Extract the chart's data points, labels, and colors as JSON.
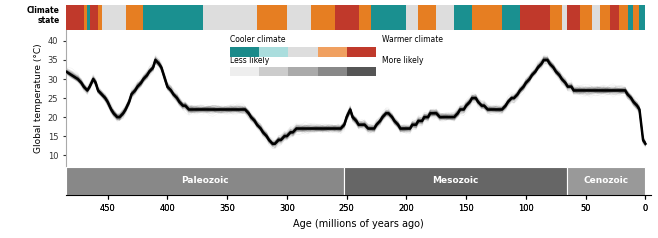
{
  "title": "Climate state",
  "ylabel": "Global temperature (°C)",
  "xlabel": "Age (millions of years ago)",
  "xlim": [
    485,
    -5
  ],
  "ylim": [
    7,
    43
  ],
  "yticks": [
    10,
    15,
    20,
    25,
    30,
    35,
    40
  ],
  "xticks": [
    450,
    400,
    350,
    300,
    250,
    200,
    150,
    100,
    50,
    0
  ],
  "eras": [
    {
      "name": "Paleozoic",
      "xmin": 485,
      "xmax": 252,
      "color": "#888888"
    },
    {
      "name": "Mesozoic",
      "xmin": 252,
      "xmax": 66,
      "color": "#666666"
    },
    {
      "name": "Cenozoic",
      "xmin": 66,
      "xmax": 0,
      "color": "#999999"
    }
  ],
  "legend_items": [
    {
      "label": "Cooler climate",
      "color": "#1a8a8a"
    },
    {
      "label": "Warmer climate",
      "color": "#c0392b"
    }
  ],
  "climate_bar_segments": [
    {
      "xstart": 485,
      "xend": 470,
      "color": "#c0392b"
    },
    {
      "xstart": 470,
      "xend": 467,
      "color": "#e67e22"
    },
    {
      "xstart": 467,
      "xend": 465,
      "color": "#1a9090"
    },
    {
      "xstart": 465,
      "xend": 462,
      "color": "#c0392b"
    },
    {
      "xstart": 462,
      "xend": 458,
      "color": "#c0392b"
    },
    {
      "xstart": 458,
      "xend": 455,
      "color": "#e67e22"
    },
    {
      "xstart": 455,
      "xend": 448,
      "color": "#dddddd"
    },
    {
      "xstart": 448,
      "xend": 440,
      "color": "#dddddd"
    },
    {
      "xstart": 440,
      "xend": 435,
      "color": "#dddddd"
    },
    {
      "xstart": 435,
      "xend": 430,
      "color": "#e67e22"
    },
    {
      "xstart": 430,
      "xend": 420,
      "color": "#e67e22"
    },
    {
      "xstart": 420,
      "xend": 415,
      "color": "#1a9090"
    },
    {
      "xstart": 415,
      "xend": 400,
      "color": "#1a9090"
    },
    {
      "xstart": 400,
      "xend": 390,
      "color": "#1a9090"
    },
    {
      "xstart": 390,
      "xend": 380,
      "color": "#1a9090"
    },
    {
      "xstart": 380,
      "xend": 370,
      "color": "#1a9090"
    },
    {
      "xstart": 370,
      "xend": 355,
      "color": "#dddddd"
    },
    {
      "xstart": 355,
      "xend": 340,
      "color": "#dddddd"
    },
    {
      "xstart": 340,
      "xend": 325,
      "color": "#dddddd"
    },
    {
      "xstart": 325,
      "xend": 310,
      "color": "#e67e22"
    },
    {
      "xstart": 310,
      "xend": 300,
      "color": "#e67e22"
    },
    {
      "xstart": 300,
      "xend": 280,
      "color": "#dddddd"
    },
    {
      "xstart": 280,
      "xend": 260,
      "color": "#e67e22"
    },
    {
      "xstart": 260,
      "xend": 252,
      "color": "#c0392b"
    },
    {
      "xstart": 252,
      "xend": 240,
      "color": "#c0392b"
    },
    {
      "xstart": 240,
      "xend": 230,
      "color": "#e67e22"
    },
    {
      "xstart": 230,
      "xend": 215,
      "color": "#1a9090"
    },
    {
      "xstart": 215,
      "xend": 200,
      "color": "#1a9090"
    },
    {
      "xstart": 200,
      "xend": 190,
      "color": "#dddddd"
    },
    {
      "xstart": 190,
      "xend": 175,
      "color": "#e67e22"
    },
    {
      "xstart": 175,
      "xend": 160,
      "color": "#dddddd"
    },
    {
      "xstart": 160,
      "xend": 145,
      "color": "#1a9090"
    },
    {
      "xstart": 145,
      "xend": 130,
      "color": "#e67e22"
    },
    {
      "xstart": 130,
      "xend": 120,
      "color": "#e67e22"
    },
    {
      "xstart": 120,
      "xend": 105,
      "color": "#1a9090"
    },
    {
      "xstart": 105,
      "xend": 90,
      "color": "#c0392b"
    },
    {
      "xstart": 90,
      "xend": 80,
      "color": "#c0392b"
    },
    {
      "xstart": 80,
      "xend": 70,
      "color": "#e67e22"
    },
    {
      "xstart": 70,
      "xend": 66,
      "color": "#dddddd"
    },
    {
      "xstart": 66,
      "xend": 55,
      "color": "#c0392b"
    },
    {
      "xstart": 55,
      "xend": 45,
      "color": "#e67e22"
    },
    {
      "xstart": 45,
      "xend": 38,
      "color": "#dddddd"
    },
    {
      "xstart": 38,
      "xend": 30,
      "color": "#e67e22"
    },
    {
      "xstart": 30,
      "xend": 22,
      "color": "#c0392b"
    },
    {
      "xstart": 22,
      "xend": 15,
      "color": "#e67e22"
    },
    {
      "xstart": 15,
      "xend": 10,
      "color": "#1a9090"
    },
    {
      "xstart": 10,
      "xend": 5,
      "color": "#e67e22"
    },
    {
      "xstart": 5,
      "xend": 0,
      "color": "#1a9090"
    }
  ],
  "main_curve_x": [
    485,
    480,
    475,
    472,
    470,
    467,
    465,
    462,
    460,
    458,
    455,
    452,
    450,
    447,
    445,
    442,
    440,
    437,
    435,
    432,
    430,
    427,
    425,
    422,
    420,
    417,
    415,
    412,
    410,
    407,
    405,
    402,
    400,
    397,
    395,
    392,
    390,
    387,
    385,
    382,
    380,
    377,
    375,
    372,
    370,
    367,
    365,
    362,
    360,
    357,
    355,
    352,
    350,
    347,
    345,
    342,
    340,
    337,
    335,
    332,
    330,
    327,
    325,
    322,
    320,
    317,
    315,
    312,
    310,
    307,
    305,
    302,
    300,
    297,
    295,
    292,
    290,
    287,
    285,
    282,
    280,
    277,
    275,
    272,
    270,
    267,
    265,
    262,
    260,
    257,
    255,
    252,
    250,
    247,
    245,
    242,
    240,
    237,
    235,
    232,
    230,
    227,
    225,
    222,
    220,
    217,
    215,
    212,
    210,
    207,
    205,
    202,
    200,
    197,
    195,
    192,
    190,
    187,
    185,
    182,
    180,
    177,
    175,
    172,
    170,
    167,
    165,
    162,
    160,
    157,
    155,
    152,
    150,
    147,
    145,
    142,
    140,
    137,
    135,
    132,
    130,
    127,
    125,
    122,
    120,
    117,
    115,
    112,
    110,
    107,
    105,
    102,
    100,
    97,
    95,
    92,
    90,
    87,
    85,
    82,
    80,
    77,
    75,
    72,
    70,
    67,
    65,
    62,
    60,
    57,
    55,
    52,
    50,
    47,
    45,
    42,
    40,
    37,
    35,
    32,
    30,
    27,
    25,
    22,
    20,
    17,
    15,
    12,
    10,
    7,
    5,
    2,
    0
  ],
  "main_curve_y": [
    32,
    31,
    30,
    29,
    28,
    27,
    28,
    30,
    29,
    27,
    26,
    25,
    24,
    22,
    21,
    20,
    20,
    21,
    22,
    24,
    26,
    27,
    28,
    29,
    30,
    31,
    32,
    33,
    35,
    34,
    33,
    30,
    28,
    27,
    26,
    25,
    24,
    23,
    23,
    22,
    22,
    22,
    22,
    22,
    22,
    22,
    22,
    22,
    22,
    22,
    22,
    22,
    22,
    22,
    22,
    22,
    22,
    22,
    22,
    21,
    20,
    19,
    18,
    17,
    16,
    15,
    14,
    13,
    13,
    14,
    14,
    15,
    15,
    16,
    16,
    17,
    17,
    17,
    17,
    17,
    17,
    17,
    17,
    17,
    17,
    17,
    17,
    17,
    17,
    17,
    17,
    18,
    20,
    22,
    20,
    19,
    18,
    18,
    18,
    17,
    17,
    17,
    18,
    19,
    20,
    21,
    21,
    20,
    19,
    18,
    17,
    17,
    17,
    17,
    18,
    18,
    19,
    19,
    20,
    20,
    21,
    21,
    21,
    20,
    20,
    20,
    20,
    20,
    20,
    21,
    22,
    22,
    23,
    24,
    25,
    25,
    24,
    23,
    23,
    22,
    22,
    22,
    22,
    22,
    22,
    23,
    24,
    25,
    25,
    26,
    27,
    28,
    29,
    30,
    31,
    32,
    33,
    34,
    35,
    35,
    34,
    33,
    32,
    31,
    30,
    29,
    28,
    28,
    27,
    27,
    27,
    27,
    27,
    27,
    27,
    27,
    27,
    27,
    27,
    27,
    27,
    27,
    27,
    27,
    27,
    27,
    26,
    25,
    24,
    23,
    22,
    14,
    13
  ],
  "background_color": "#f5f5f5",
  "plot_bg": "#f0f0f0"
}
